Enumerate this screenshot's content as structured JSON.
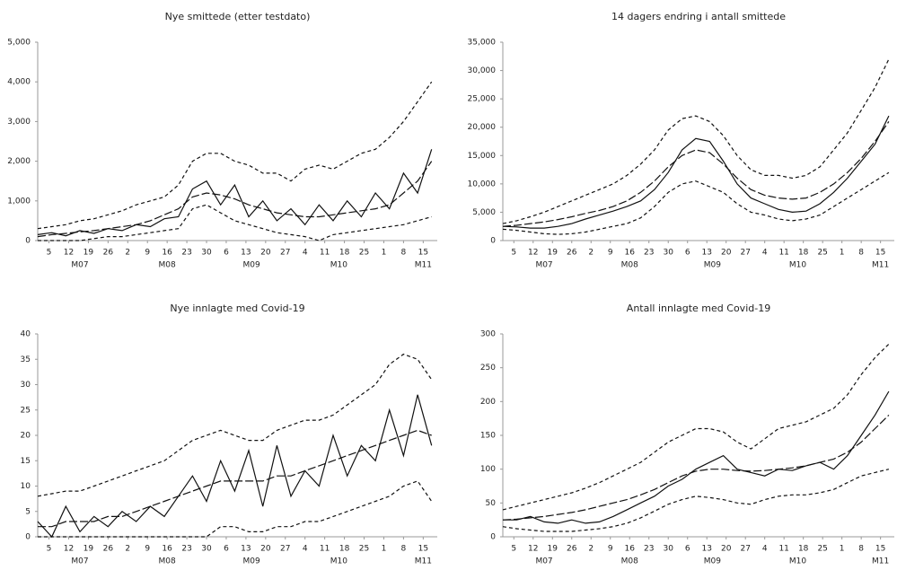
{
  "chart_data": [
    {
      "type": "line",
      "title": "Nye smittede (etter testdato)",
      "grid": false,
      "xlim": [
        1,
        143
      ],
      "ylim": [
        0,
        5000
      ],
      "yticks": [
        0,
        {
          "value": 1000,
          "label": "1,000"
        },
        {
          "value": 2000,
          "label": "2,000"
        },
        {
          "value": 3000,
          "label": "3,000"
        },
        {
          "value": 4000,
          "label": "4,000"
        },
        {
          "value": 5000,
          "label": "5,000"
        }
      ],
      "xticks": [
        5,
        12,
        19,
        26,
        {
          "value": 33,
          "label": "2"
        },
        {
          "value": 40,
          "label": "9"
        },
        {
          "value": 47,
          "label": "16"
        },
        {
          "value": 54,
          "label": "23"
        },
        {
          "value": 61,
          "label": "30"
        },
        {
          "value": 68,
          "label": "6"
        },
        {
          "value": 75,
          "label": "13"
        },
        {
          "value": 82,
          "label": "20"
        },
        {
          "value": 89,
          "label": "27"
        },
        {
          "value": 96,
          "label": "4"
        },
        {
          "value": 103,
          "label": "11"
        },
        {
          "value": 110,
          "label": "18"
        },
        {
          "value": 117,
          "label": "25"
        },
        {
          "value": 124,
          "label": "1"
        },
        {
          "value": 131,
          "label": "8"
        },
        {
          "value": 138,
          "label": "15"
        }
      ],
      "xgroups": [
        {
          "value": 16,
          "label": "M07"
        },
        {
          "value": 47,
          "label": "M08"
        },
        {
          "value": 77,
          "label": "M09"
        },
        {
          "value": 108,
          "label": "M10"
        },
        {
          "value": 138,
          "label": "M11"
        }
      ],
      "x": [
        1,
        6,
        11,
        16,
        21,
        26,
        31,
        36,
        41,
        46,
        51,
        56,
        61,
        66,
        71,
        76,
        81,
        86,
        91,
        96,
        101,
        106,
        111,
        116,
        121,
        126,
        131,
        136,
        141
      ],
      "series": [
        {
          "color": "#111111",
          "dash": "none",
          "values": [
            150,
            200,
            120,
            250,
            180,
            300,
            250,
            400,
            350,
            550,
            600,
            1300,
            1500,
            900,
            1400,
            600,
            1000,
            500,
            800,
            400,
            900,
            500,
            1000,
            600,
            1200,
            800,
            1700,
            1200,
            2300
          ]
        },
        {
          "color": "#111111",
          "dash": "9,3",
          "values": [
            100,
            150,
            180,
            220,
            250,
            300,
            350,
            400,
            500,
            650,
            800,
            1100,
            1200,
            1150,
            1050,
            900,
            800,
            700,
            650,
            600,
            600,
            650,
            700,
            750,
            800,
            900,
            1200,
            1500,
            2000
          ]
        },
        {
          "color": "#111111",
          "dash": "4,3",
          "values": [
            300,
            350,
            400,
            500,
            550,
            650,
            750,
            900,
            1000,
            1100,
            1400,
            2000,
            2200,
            2200,
            2000,
            1900,
            1700,
            1700,
            1500,
            1800,
            1900,
            1800,
            2000,
            2200,
            2300,
            2600,
            3000,
            3500,
            4000
          ]
        },
        {
          "color": "#111111",
          "dash": "4,3",
          "values": [
            0,
            0,
            0,
            0,
            50,
            100,
            100,
            150,
            200,
            250,
            300,
            800,
            900,
            700,
            500,
            400,
            300,
            200,
            150,
            100,
            0,
            150,
            200,
            250,
            300,
            350,
            400,
            500,
            600
          ]
        }
      ]
    },
    {
      "type": "line",
      "title": "14 dagers endring i antall smittede",
      "grid": false,
      "xlim": [
        1,
        143
      ],
      "ylim": [
        0,
        35000
      ],
      "yticks": [
        0,
        {
          "value": 5000,
          "label": "5,000"
        },
        {
          "value": 10000,
          "label": "10,000"
        },
        {
          "value": 15000,
          "label": "15,000"
        },
        {
          "value": 20000,
          "label": "20,000"
        },
        {
          "value": 25000,
          "label": "25,000"
        },
        {
          "value": 30000,
          "label": "30,000"
        },
        {
          "value": 35000,
          "label": "35,000"
        }
      ],
      "xticks": [
        5,
        12,
        19,
        26,
        {
          "value": 33,
          "label": "2"
        },
        {
          "value": 40,
          "label": "9"
        },
        {
          "value": 47,
          "label": "16"
        },
        {
          "value": 54,
          "label": "23"
        },
        {
          "value": 61,
          "label": "30"
        },
        {
          "value": 68,
          "label": "6"
        },
        {
          "value": 75,
          "label": "13"
        },
        {
          "value": 82,
          "label": "20"
        },
        {
          "value": 89,
          "label": "27"
        },
        {
          "value": 96,
          "label": "4"
        },
        {
          "value": 103,
          "label": "11"
        },
        {
          "value": 110,
          "label": "18"
        },
        {
          "value": 117,
          "label": "25"
        },
        {
          "value": 124,
          "label": "1"
        },
        {
          "value": 131,
          "label": "8"
        },
        {
          "value": 138,
          "label": "15"
        }
      ],
      "xgroups": [
        {
          "value": 16,
          "label": "M07"
        },
        {
          "value": 47,
          "label": "M08"
        },
        {
          "value": 77,
          "label": "M09"
        },
        {
          "value": 108,
          "label": "M10"
        },
        {
          "value": 138,
          "label": "M11"
        }
      ],
      "x": [
        1,
        6,
        11,
        16,
        21,
        26,
        31,
        36,
        41,
        46,
        51,
        56,
        61,
        66,
        71,
        76,
        81,
        86,
        91,
        96,
        101,
        106,
        111,
        116,
        121,
        126,
        131,
        136,
        141
      ],
      "series": [
        {
          "color": "#111111",
          "dash": "none",
          "values": [
            2500,
            2400,
            2200,
            2200,
            2500,
            3000,
            3800,
            4500,
            5200,
            6000,
            7000,
            9000,
            12000,
            16000,
            18000,
            17500,
            14000,
            10000,
            7500,
            6500,
            5500,
            5000,
            5200,
            6500,
            8500,
            11000,
            14000,
            17000,
            22000
          ]
        },
        {
          "color": "#111111",
          "dash": "9,3",
          "values": [
            2500,
            2700,
            3000,
            3300,
            3700,
            4200,
            4800,
            5300,
            6000,
            7000,
            8500,
            10500,
            13000,
            15000,
            16000,
            15500,
            13500,
            11000,
            9000,
            8000,
            7500,
            7300,
            7500,
            8500,
            10000,
            12000,
            14500,
            17500,
            21000
          ]
        },
        {
          "color": "#111111",
          "dash": "4,3",
          "values": [
            3000,
            3500,
            4200,
            5000,
            6000,
            7000,
            8000,
            9000,
            10000,
            11500,
            13500,
            16000,
            19500,
            21500,
            22000,
            21000,
            18500,
            15000,
            12500,
            11500,
            11500,
            11000,
            11500,
            13000,
            16000,
            19000,
            23000,
            27000,
            32000
          ]
        },
        {
          "color": "#111111",
          "dash": "4,3",
          "values": [
            2000,
            1800,
            1500,
            1200,
            1100,
            1200,
            1500,
            2000,
            2500,
            3000,
            4000,
            6000,
            8500,
            10000,
            10500,
            9500,
            8500,
            6500,
            5000,
            4500,
            3800,
            3500,
            3800,
            4500,
            6000,
            7500,
            9000,
            10500,
            12000
          ]
        }
      ]
    },
    {
      "type": "line",
      "title": "Nye innlagte med Covid-19",
      "grid": false,
      "xlim": [
        1,
        143
      ],
      "ylim": [
        0,
        40
      ],
      "yticks": [
        0,
        5,
        10,
        15,
        20,
        25,
        30,
        35,
        40
      ],
      "xticks": [
        5,
        12,
        19,
        26,
        {
          "value": 33,
          "label": "2"
        },
        {
          "value": 40,
          "label": "9"
        },
        {
          "value": 47,
          "label": "16"
        },
        {
          "value": 54,
          "label": "23"
        },
        {
          "value": 61,
          "label": "30"
        },
        {
          "value": 68,
          "label": "6"
        },
        {
          "value": 75,
          "label": "13"
        },
        {
          "value": 82,
          "label": "20"
        },
        {
          "value": 89,
          "label": "27"
        },
        {
          "value": 96,
          "label": "4"
        },
        {
          "value": 103,
          "label": "11"
        },
        {
          "value": 110,
          "label": "18"
        },
        {
          "value": 117,
          "label": "25"
        },
        {
          "value": 124,
          "label": "1"
        },
        {
          "value": 131,
          "label": "8"
        },
        {
          "value": 138,
          "label": "15"
        }
      ],
      "xgroups": [
        {
          "value": 16,
          "label": "M07"
        },
        {
          "value": 47,
          "label": "M08"
        },
        {
          "value": 77,
          "label": "M09"
        },
        {
          "value": 108,
          "label": "M10"
        },
        {
          "value": 138,
          "label": "M11"
        }
      ],
      "x": [
        1,
        6,
        11,
        16,
        21,
        26,
        31,
        36,
        41,
        46,
        51,
        56,
        61,
        66,
        71,
        76,
        81,
        86,
        91,
        96,
        101,
        106,
        111,
        116,
        121,
        126,
        131,
        136,
        141
      ],
      "series": [
        {
          "color": "#111111",
          "dash": "none",
          "values": [
            3,
            0,
            6,
            1,
            4,
            2,
            5,
            3,
            6,
            4,
            8,
            12,
            7,
            15,
            9,
            17,
            6,
            18,
            8,
            13,
            10,
            20,
            12,
            18,
            15,
            25,
            16,
            28,
            18
          ]
        },
        {
          "color": "#111111",
          "dash": "9,3",
          "values": [
            2,
            2,
            3,
            3,
            3,
            4,
            4,
            5,
            6,
            7,
            8,
            9,
            10,
            11,
            11,
            11,
            11,
            12,
            12,
            13,
            14,
            15,
            16,
            17,
            18,
            19,
            20,
            21,
            20
          ]
        },
        {
          "color": "#111111",
          "dash": "4,3",
          "values": [
            8,
            8.5,
            9,
            9,
            10,
            11,
            12,
            13,
            14,
            15,
            17,
            19,
            20,
            21,
            20,
            19,
            19,
            21,
            22,
            23,
            23,
            24,
            26,
            28,
            30,
            34,
            36,
            35,
            31
          ]
        },
        {
          "color": "#111111",
          "dash": "4,3",
          "values": [
            0,
            0,
            0,
            0,
            0,
            0,
            0,
            0,
            0,
            0,
            0,
            0,
            0,
            2,
            2,
            1,
            1,
            2,
            2,
            3,
            3,
            4,
            5,
            6,
            7,
            8,
            10,
            11,
            7
          ]
        }
      ]
    },
    {
      "type": "line",
      "title": "Antall innlagte med Covid-19",
      "grid": false,
      "xlim": [
        1,
        143
      ],
      "ylim": [
        0,
        300
      ],
      "yticks": [
        0,
        50,
        100,
        150,
        200,
        250,
        300
      ],
      "xticks": [
        5,
        12,
        19,
        26,
        {
          "value": 33,
          "label": "2"
        },
        {
          "value": 40,
          "label": "9"
        },
        {
          "value": 47,
          "label": "16"
        },
        {
          "value": 54,
          "label": "23"
        },
        {
          "value": 61,
          "label": "30"
        },
        {
          "value": 68,
          "label": "6"
        },
        {
          "value": 75,
          "label": "13"
        },
        {
          "value": 82,
          "label": "20"
        },
        {
          "value": 89,
          "label": "27"
        },
        {
          "value": 96,
          "label": "4"
        },
        {
          "value": 103,
          "label": "11"
        },
        {
          "value": 110,
          "label": "18"
        },
        {
          "value": 117,
          "label": "25"
        },
        {
          "value": 124,
          "label": "1"
        },
        {
          "value": 131,
          "label": "8"
        },
        {
          "value": 138,
          "label": "15"
        }
      ],
      "xgroups": [
        {
          "value": 16,
          "label": "M07"
        },
        {
          "value": 47,
          "label": "M08"
        },
        {
          "value": 77,
          "label": "M09"
        },
        {
          "value": 108,
          "label": "M10"
        },
        {
          "value": 138,
          "label": "M11"
        }
      ],
      "x": [
        1,
        6,
        11,
        16,
        21,
        26,
        31,
        36,
        41,
        46,
        51,
        56,
        61,
        66,
        71,
        76,
        81,
        86,
        91,
        96,
        101,
        106,
        111,
        116,
        121,
        126,
        131,
        136,
        141
      ],
      "series": [
        {
          "color": "#111111",
          "dash": "none",
          "values": [
            25,
            25,
            30,
            22,
            20,
            25,
            20,
            22,
            30,
            40,
            50,
            60,
            75,
            85,
            100,
            110,
            120,
            100,
            95,
            90,
            100,
            98,
            105,
            110,
            100,
            120,
            150,
            180,
            215
          ]
        },
        {
          "color": "#111111",
          "dash": "9,3",
          "values": [
            25,
            26,
            28,
            30,
            33,
            36,
            40,
            45,
            50,
            55,
            62,
            70,
            80,
            90,
            97,
            100,
            100,
            98,
            97,
            98,
            100,
            102,
            105,
            110,
            115,
            125,
            140,
            160,
            180
          ]
        },
        {
          "color": "#111111",
          "dash": "4,3",
          "values": [
            40,
            45,
            50,
            55,
            60,
            65,
            72,
            80,
            90,
            100,
            110,
            125,
            140,
            150,
            160,
            160,
            155,
            140,
            130,
            145,
            160,
            165,
            170,
            180,
            190,
            210,
            240,
            265,
            285
          ]
        },
        {
          "color": "#111111",
          "dash": "4,3",
          "values": [
            15,
            12,
            10,
            8,
            8,
            8,
            10,
            12,
            15,
            20,
            28,
            38,
            48,
            55,
            60,
            58,
            55,
            50,
            48,
            55,
            60,
            62,
            62,
            65,
            70,
            80,
            90,
            95,
            100
          ]
        }
      ]
    }
  ]
}
